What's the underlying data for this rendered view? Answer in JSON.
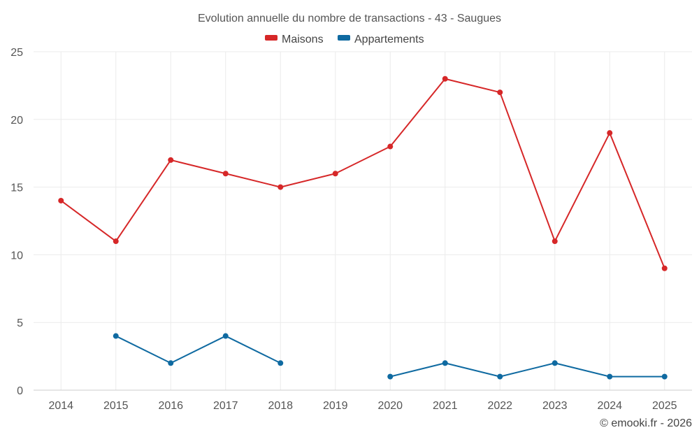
{
  "chart_data": {
    "type": "line",
    "title": "Evolution annuelle du nombre de transactions - 43 - Saugues",
    "xlabel": "",
    "ylabel": "",
    "ylim": [
      0,
      25
    ],
    "yticks": [
      "0",
      "5",
      "10",
      "15",
      "20",
      "25"
    ],
    "categories": [
      "2014",
      "2015",
      "2016",
      "2017",
      "2018",
      "2019",
      "2020",
      "2021",
      "2022",
      "2023",
      "2024",
      "2025"
    ],
    "series": [
      {
        "name": "Maisons",
        "color": "#d62728",
        "values": [
          14,
          11,
          17,
          16,
          15,
          16,
          18,
          23,
          22,
          11,
          19,
          9
        ]
      },
      {
        "name": "Appartements",
        "color": "#0f6aa1",
        "values": [
          null,
          4,
          2,
          4,
          2,
          null,
          1,
          2,
          1,
          2,
          1,
          1
        ]
      }
    ],
    "legend": "top-center",
    "grid": true,
    "credit": "© emooki.fr - 2026"
  }
}
